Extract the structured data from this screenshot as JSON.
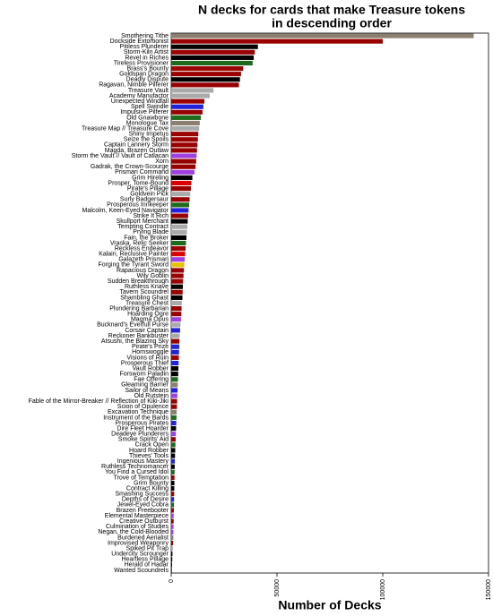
{
  "chart_data": {
    "type": "barh",
    "title": [
      "N decks for cards that make Treasure tokens",
      "in descending order"
    ],
    "x_label": "Number of Decks",
    "xlim": [
      0,
      150000
    ],
    "xticks": [
      0,
      50000,
      100000,
      150000
    ],
    "categories": [
      "Smothering Tithe",
      "Dockside Extortionist",
      "Pitiless Plunderer",
      "Storm-Kiln Artist",
      "Revel in Riches",
      "Tireless Provisioner",
      "Brass's Bounty",
      "Goldspan Dragon",
      "Deadly Dispute",
      "Ragavan, Nimble Pilferer",
      "Treasure Vault",
      "Academy Manufactor",
      "Unexpected Windfall",
      "Spell Swindle",
      "Impulsive Pilferer",
      "Old Gnawbone",
      "Monologue Tax",
      "Treasure Map // Treasure Cove",
      "Shiny Impetus",
      "Seize the Spoils",
      "Captain Lannery Storm",
      "Magda, Brazen Outlaw",
      "Storm the Vault // Vault of Catlacan",
      "Xorn",
      "Gadrak, the Crown-Scourge",
      "Prismari Command",
      "Grim Hireling",
      "Prosper, Tome-Bound",
      "Pirate's Pillage",
      "Goldvein Pick",
      "Surly Badgersaur",
      "Prosperous Innkeeper",
      "Malcolm, Keen-Eyed Navigator",
      "Strike It Rich",
      "Skullport Merchant",
      "Tempting Contract",
      "Prying Blade",
      "Fain, the Broker",
      "Vraska, Relic Seeker",
      "Reckless Endeavor",
      "Kalain, Reclusive Painter",
      "Galazeth Prismari",
      "Forging the Tyrant Sword",
      "Rapacious Dragon",
      "Wily Goblin",
      "Sudden Breakthrough",
      "Ruthless Knave",
      "Tavern Scoundrel",
      "Shambling Ghast",
      "Treasure Chest",
      "Plundering Barbarian",
      "Hoarding Ogre",
      "Magma Opus",
      "Bucknard's Everfull Purse",
      "Corsair Captain",
      "Reckoner Bankbuster",
      "Atsushi, the Blazing Sky",
      "Pirate's Prize",
      "Hornswoggle",
      "Visions of Ruin",
      "Prosperous Thief",
      "Vault Robber",
      "Forsworn Paladin",
      "Fae Offering",
      "Gleaming Barrier",
      "Sailor of Means",
      "Old Rutstein",
      "Fable of the Mirror-Breaker // Reflection of Kiki-Jiki",
      "Scion of Opulence",
      "Excavation Technique",
      "Instrument of the Bards",
      "Prosperous Pirates",
      "Dire Fleet Hoarder",
      "Deadeye Plunderers",
      "Smoke Spirits' Aid",
      "Crack Open",
      "Hoard Robber",
      "Thieves' Tools",
      "Ingenious Mastery",
      "Ruthless Technomancer",
      "You Find a Cursed Idol",
      "Trove of Temptation",
      "Grim Bounty",
      "Contract Killing",
      "Smashing Success",
      "Depths of Desire",
      "Jewel-Eyed Cobra",
      "Brazen Freebooter",
      "Elemental Masterpiece",
      "Creative Outburst",
      "Culmination of Studies",
      "Negan, the Cold-Blooded",
      "Burdened Aerialist",
      "Improvised Weaponry",
      "Spiked Pit Trap",
      "Undercity Scrounger",
      "Heartless Pillage",
      "Herald of Hadar",
      "Wanted Scoundrels"
    ],
    "values": [
      143000,
      100000,
      41000,
      39500,
      39000,
      38500,
      34000,
      33000,
      32500,
      32000,
      20000,
      18200,
      15700,
      15200,
      14800,
      14000,
      13500,
      13200,
      12800,
      12600,
      12400,
      12200,
      12000,
      11800,
      11500,
      11000,
      10000,
      9500,
      9300,
      9000,
      8700,
      8500,
      8200,
      8000,
      7800,
      7600,
      7400,
      7200,
      7000,
      6800,
      6600,
      6400,
      6200,
      6000,
      5800,
      5600,
      5500,
      5400,
      5300,
      5000,
      4900,
      4800,
      4600,
      4400,
      4200,
      4000,
      3900,
      3800,
      3700,
      3600,
      3500,
      3400,
      3300,
      3200,
      3100,
      3000,
      2900,
      2800,
      2700,
      2600,
      2500,
      2400,
      2300,
      2200,
      2100,
      2000,
      1900,
      1800,
      1700,
      1650,
      1600,
      1550,
      1500,
      1450,
      1400,
      1350,
      1300,
      1250,
      1200,
      1150,
      1100,
      1050,
      1000,
      900,
      800,
      600,
      500,
      400,
      300
    ],
    "colors": [
      "#8b8070",
      "#990000",
      "#000000",
      "#990000",
      "#000000",
      "#1e6b1e",
      "#990000",
      "#990000",
      "#000000",
      "#990000",
      "#aaaaaa",
      "#aaaaaa",
      "#990000",
      "#2222dd",
      "#990000",
      "#1e6b1e",
      "#8b8070",
      "#aaaaaa",
      "#990000",
      "#990000",
      "#990000",
      "#990000",
      "#a040e0",
      "#990000",
      "#990000",
      "#a040e0",
      "#000000",
      "#dd0000",
      "#990000",
      "#aaaaaa",
      "#990000",
      "#1e6b1e",
      "#2222dd",
      "#990000",
      "#000000",
      "#aaaaaa",
      "#aaaaaa",
      "#000000",
      "#1e6b1e",
      "#990000",
      "#dd0000",
      "#a040e0",
      "#e8c000",
      "#990000",
      "#990000",
      "#990000",
      "#000000",
      "#990000",
      "#000000",
      "#aaaaaa",
      "#990000",
      "#990000",
      "#a040e0",
      "#aaaaaa",
      "#2222dd",
      "#aaaaaa",
      "#990000",
      "#2222dd",
      "#2222dd",
      "#990000",
      "#2222dd",
      "#000000",
      "#000000",
      "#1e6b1e",
      "#8b8070",
      "#2222dd",
      "#a040e0",
      "#990000",
      "#990000",
      "#8b8070",
      "#1e6b1e",
      "#2222dd",
      "#000000",
      "#a040e0",
      "#990000",
      "#1e6b1e",
      "#000000",
      "#000000",
      "#2222dd",
      "#000000",
      "#1e6b1e",
      "#990000",
      "#000000",
      "#000000",
      "#990000",
      "#2222dd",
      "#1e6b1e",
      "#990000",
      "#a040e0",
      "#990000",
      "#a040e0",
      "#a040e0",
      "#8b8070",
      "#990000",
      "#aaaaaa",
      "#000000",
      "#000000",
      "#000000",
      "#000000"
    ]
  }
}
